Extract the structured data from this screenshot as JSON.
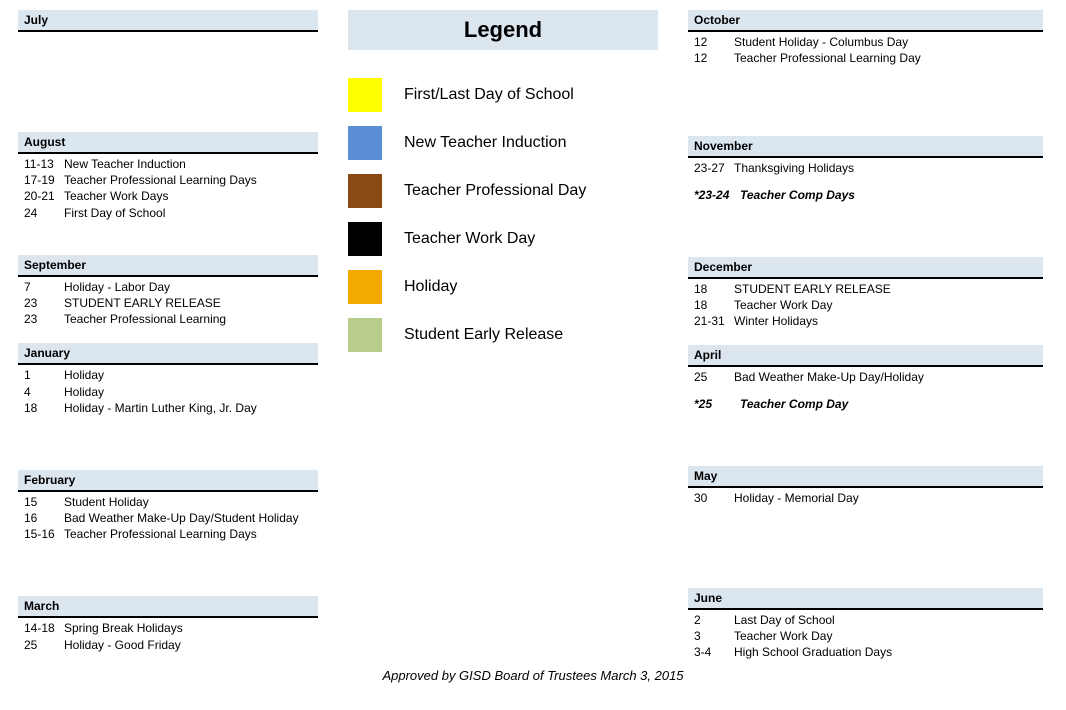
{
  "colors": {
    "header_bg": "#dce6ef",
    "first_last": "#ffff00",
    "induction": "#5a8fd6",
    "prof_day": "#8a4a14",
    "work_day": "#000000",
    "holiday": "#f2a900",
    "early_release": "#b8cc8c"
  },
  "legend": {
    "title": "Legend",
    "items": [
      {
        "label": "First/Last Day of School",
        "color": "#ffff00"
      },
      {
        "label": "New Teacher Induction",
        "color": "#5a8fd6"
      },
      {
        "label": "Teacher Professional Day",
        "color": "#8a4a14"
      },
      {
        "label": "Teacher Work Day",
        "color": "#000000"
      },
      {
        "label": "Holiday",
        "color": "#f2a900"
      },
      {
        "label": "Student Early Release",
        "color": "#b8cc8c"
      }
    ]
  },
  "left": [
    {
      "month": "July",
      "gap_before": 0,
      "events": []
    },
    {
      "month": "August",
      "gap_before": 98,
      "events": [
        {
          "date": "11-13",
          "label": "New Teacher Induction"
        },
        {
          "date": "17-19",
          "label": "Teacher Professional Learning Days"
        },
        {
          "date": "20-21",
          "label": "Teacher Work Days"
        },
        {
          "date": "24",
          "label": "First Day of School"
        }
      ]
    },
    {
      "month": "September",
      "gap_before": 34,
      "events": [
        {
          "date": "7",
          "label": "Holiday - Labor Day"
        },
        {
          "date": "23",
          "label": "STUDENT EARLY RELEASE"
        },
        {
          "date": "23",
          "label": "Teacher Professional Learning"
        }
      ]
    },
    {
      "month": "January",
      "gap_before": 16,
      "events": [
        {
          "date": "1",
          "label": "Holiday"
        },
        {
          "date": "4",
          "label": "Holiday"
        },
        {
          "date": "18",
          "label": "Holiday - Martin Luther King, Jr. Day"
        }
      ]
    },
    {
      "month": "February",
      "gap_before": 54,
      "events": [
        {
          "date": "15",
          "label": "Student Holiday"
        },
        {
          "date": "16",
          "label": "Bad Weather Make-Up Day/Student Holiday"
        },
        {
          "date": "15-16",
          "label": "Teacher Professional Learning Days"
        }
      ]
    },
    {
      "month": "March",
      "gap_before": 54,
      "events": [
        {
          "date": "14-18",
          "label": "Spring Break Holidays"
        },
        {
          "date": "25",
          "label": "Holiday - Good Friday"
        }
      ]
    }
  ],
  "right": [
    {
      "month": "October",
      "gap_before": 0,
      "events": [
        {
          "date": "12",
          "label": "Student Holiday - Columbus Day"
        },
        {
          "date": "12",
          "label": "Teacher Professional Learning Day"
        }
      ]
    },
    {
      "month": "November",
      "gap_before": 70,
      "events": [
        {
          "date": "23-27",
          "label": "Thanksgiving Holidays"
        }
      ],
      "extras": [
        {
          "date": "*23-24",
          "label": "Teacher Comp Days",
          "style": "bold-italic",
          "gap_before": 10
        }
      ]
    },
    {
      "month": "December",
      "gap_before": 54,
      "events": [
        {
          "date": "18",
          "label": "STUDENT EARLY RELEASE"
        },
        {
          "date": "18",
          "label": "Teacher Work Day"
        },
        {
          "date": "21-31",
          "label": "Winter Holidays"
        }
      ]
    },
    {
      "month": "April",
      "gap_before": 16,
      "events": [
        {
          "date": "25",
          "label": "Bad Weather Make-Up Day/Holiday"
        }
      ],
      "extras": [
        {
          "date": "*25",
          "label": "Teacher Comp Day",
          "style": "bold-italic",
          "gap_before": 10
        }
      ]
    },
    {
      "month": "May",
      "gap_before": 54,
      "events": [
        {
          "date": "30",
          "label": "Holiday - Memorial Day"
        }
      ]
    },
    {
      "month": "June",
      "gap_before": 82,
      "events": [
        {
          "date": "2",
          "label": "Last Day of School"
        },
        {
          "date": "3",
          "label": "Teacher Work Day"
        },
        {
          "date": "3-4",
          "label": "High School Graduation Days"
        }
      ]
    }
  ],
  "footer": "Approved by GISD Board of Trustees March 3, 2015"
}
